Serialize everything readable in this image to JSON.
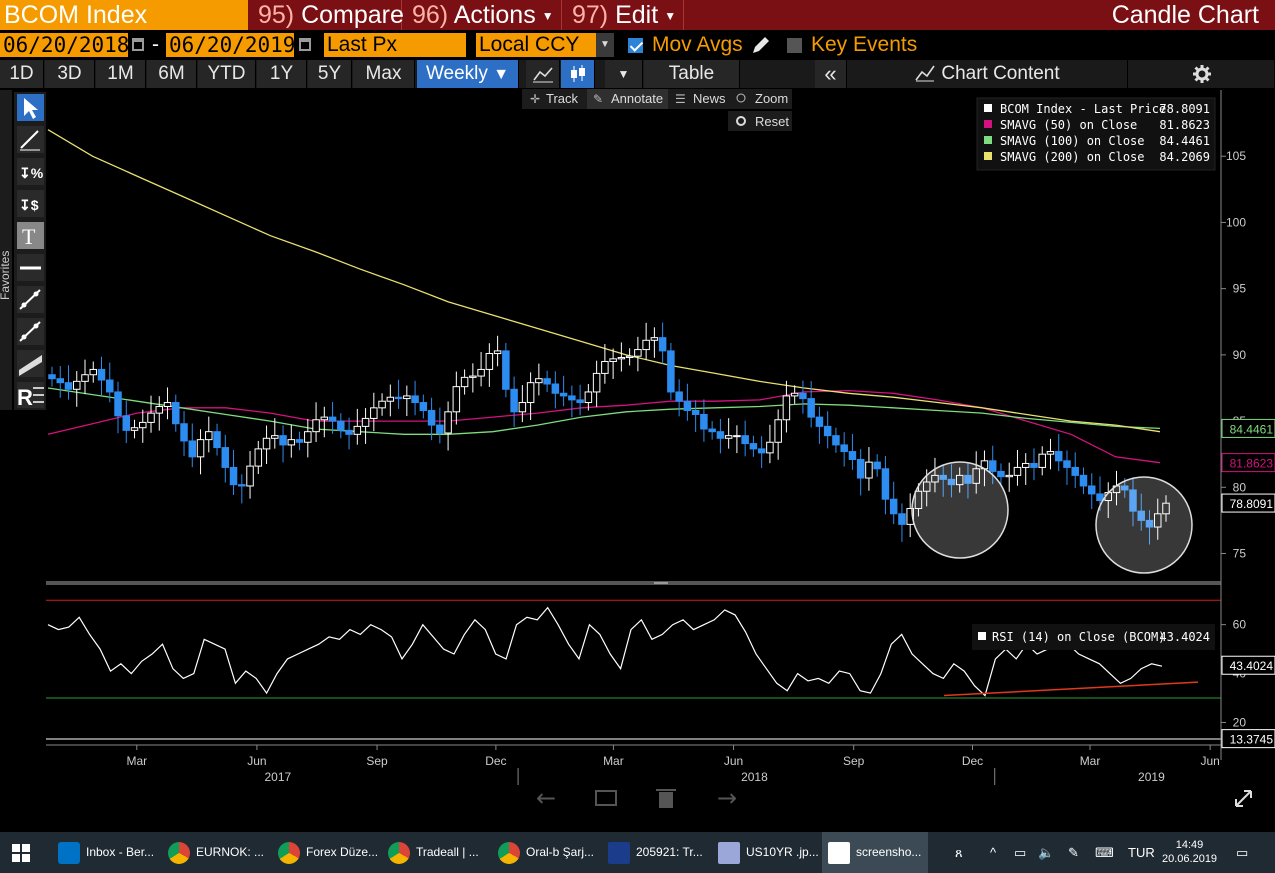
{
  "header": {
    "security": "BCOM Index",
    "menus": [
      {
        "num": "95)",
        "label": "Compare"
      },
      {
        "num": "96)",
        "label": "Actions"
      },
      {
        "num": "97)",
        "label": "Edit"
      }
    ],
    "chart_type": "Candle Chart"
  },
  "settings": {
    "start_date": "06/20/2018",
    "end_date": "06/20/2019",
    "separator": "-",
    "field": "Last Px",
    "currency": "Local CCY",
    "mov_avgs_label": "Mov Avgs",
    "mov_avgs_checked": true,
    "key_events_label": "Key Events",
    "key_events_checked": false
  },
  "toolbar": {
    "periods": [
      "1D",
      "3D",
      "1M",
      "6M",
      "YTD",
      "1Y",
      "5Y",
      "Max"
    ],
    "frequency": "Weekly",
    "table_label": "Table",
    "collapse_label": "«",
    "chart_content_label": "Chart Content"
  },
  "chart_tools": {
    "track": "Track",
    "annotate": "Annotate",
    "news": "News",
    "zoom": "Zoom",
    "reset": "Reset",
    "favorites": "Favorites"
  },
  "colors": {
    "candle_up": "#ffffff",
    "candle_down": "#2d8cf0",
    "sma50": "#d4127f",
    "sma100": "#7fdc7f",
    "sma200": "#e8e070",
    "rsi": "#ffffff",
    "rsi_upper": "#d31c1c",
    "rsi_lower": "#2ea02e",
    "trendline": "#e03a1a"
  },
  "legend": [
    {
      "label": "BCOM Index - Last Price",
      "value": "78.8091",
      "color": "#ffffff"
    },
    {
      "label": "SMAVG (50)  on Close",
      "value": "81.8623",
      "color": "#d4127f"
    },
    {
      "label": "SMAVG (100)  on Close",
      "value": "84.4461",
      "color": "#7fdc7f"
    },
    {
      "label": "SMAVG (200)  on Close",
      "value": "84.2069",
      "color": "#e8e070"
    }
  ],
  "rsi_legend": {
    "label": "RSI (14)  on Close (BCOM)",
    "value": "43.4024"
  },
  "price_tags": [
    {
      "value": "84.4461",
      "color": "#7fdc7f"
    },
    {
      "value": "81.8623",
      "color": "#d4127f"
    },
    {
      "value": "78.8091",
      "color": "#ffffff"
    }
  ],
  "rsi_tags": [
    {
      "value": "43.4024",
      "color": "#ffffff"
    },
    {
      "value": "13.3745",
      "color": "#ffffff"
    }
  ],
  "chart_data": [
    {
      "type": "candlestick",
      "frequency": "weekly",
      "y_axis_ticks": [
        75,
        80,
        85,
        90,
        95,
        100,
        105
      ],
      "ylim": [
        73,
        110
      ],
      "x_month_labels": [
        "Mar",
        "Jun",
        "Sep",
        "Dec",
        "Mar",
        "Jun",
        "Sep",
        "Dec",
        "Mar",
        "Jun"
      ],
      "x_year_labels": [
        "2017",
        "2018",
        "2019"
      ],
      "x_start": "2017-01-06",
      "x_end": "2019-06-21",
      "series": [
        {
          "name": "BCOM Index - Last Price",
          "close": [
            88.2,
            87.9,
            87.4,
            88.0,
            88.5,
            88.9,
            88.1,
            87.2,
            85.4,
            84.3,
            84.5,
            84.9,
            85.6,
            86.1,
            86.4,
            84.8,
            83.5,
            82.3,
            83.6,
            84.2,
            83.0,
            81.5,
            80.2,
            80.1,
            81.6,
            82.9,
            83.7,
            83.9,
            83.2,
            83.6,
            83.4,
            84.2,
            85.1,
            85.3,
            85.0,
            84.3,
            84.0,
            84.6,
            85.2,
            86.0,
            86.5,
            86.8,
            86.7,
            86.9,
            86.4,
            85.8,
            84.7,
            84.1,
            85.7,
            87.6,
            88.3,
            88.4,
            88.9,
            90.1,
            90.3,
            87.4,
            85.7,
            86.4,
            87.9,
            88.2,
            87.8,
            87.1,
            86.9,
            86.6,
            86.4,
            87.2,
            88.6,
            89.5,
            89.7,
            89.8,
            89.9,
            90.4,
            91.1,
            91.3,
            90.3,
            87.2,
            86.5,
            85.8,
            85.5,
            84.4,
            84.2,
            83.7,
            83.9,
            83.9,
            83.3,
            82.9,
            82.6,
            83.4,
            85.1,
            86.9,
            87.1,
            86.7,
            85.3,
            84.6,
            83.9,
            83.2,
            82.7,
            82.1,
            80.7,
            81.9,
            81.4,
            79.1,
            78.0,
            77.2,
            78.4,
            79.7,
            80.4,
            80.9,
            80.6,
            80.2,
            80.9,
            80.3,
            81.4,
            82.0,
            81.2,
            80.8,
            80.9,
            81.5,
            81.8,
            81.5,
            82.5,
            82.7,
            82.0,
            81.5,
            80.9,
            80.1,
            79.5,
            79.0,
            79.6,
            80.1,
            79.8,
            78.2,
            77.5,
            77.0,
            78.0,
            78.8
          ]
        },
        {
          "name": "SMAVG (50)  on Close",
          "values": [
            84.0,
            84.8,
            85.6,
            86.0,
            86.0,
            85.6,
            85.0,
            85.0,
            85.0,
            85.0,
            85.3,
            85.6,
            86.0,
            86.2,
            86.5,
            86.5,
            86.6,
            87.2,
            87.3,
            87.1,
            86.6,
            86.0,
            85.0,
            84.0,
            82.3,
            81.86
          ]
        },
        {
          "name": "SMAVG (100)  on Close",
          "values": [
            87.5,
            87.0,
            86.5,
            86.0,
            85.5,
            85.0,
            84.4,
            84.2,
            84.0,
            84.0,
            84.2,
            84.7,
            85.3,
            85.7,
            85.9,
            86.0,
            86.1,
            86.3,
            86.2,
            86.0,
            85.8,
            85.6,
            85.2,
            84.9,
            84.6,
            84.45
          ]
        },
        {
          "name": "SMAVG (200)  on Close",
          "values": [
            107.0,
            105.0,
            103.5,
            102.0,
            100.5,
            99.0,
            97.8,
            96.5,
            95.3,
            94.0,
            93.0,
            92.0,
            91.0,
            90.0,
            89.2,
            88.6,
            88.0,
            87.5,
            87.1,
            86.8,
            86.4,
            86.0,
            85.5,
            85.0,
            84.7,
            84.2
          ]
        }
      ]
    },
    {
      "type": "line",
      "name": "RSI (14)  on Close (BCOM)",
      "y_axis_ticks": [
        20,
        40,
        60
      ],
      "ylim": [
        12,
        75
      ],
      "upper_line": 70,
      "lower_line": 30,
      "series": [
        {
          "name": "RSI (14)  on Close (BCOM)",
          "values": [
            60,
            58,
            59,
            63,
            56,
            50,
            41,
            44,
            40,
            45,
            48,
            52,
            42,
            38,
            40,
            54,
            52,
            50,
            36,
            41,
            38,
            32,
            40,
            46,
            48,
            50,
            52,
            55,
            54,
            58,
            56,
            60,
            58,
            55,
            46,
            52,
            60,
            55,
            50,
            48,
            56,
            62,
            58,
            48,
            46,
            60,
            63,
            62,
            67,
            60,
            52,
            46,
            60,
            56,
            48,
            42,
            58,
            62,
            54,
            56,
            60,
            62,
            58,
            60,
            62,
            66,
            64,
            57,
            48,
            42,
            36,
            33,
            40,
            37,
            38,
            36,
            41,
            40,
            33,
            32,
            40,
            52,
            56,
            48,
            44,
            40,
            38,
            44,
            41,
            35,
            31,
            46,
            50,
            46,
            52,
            48,
            50,
            56,
            52,
            48,
            46,
            44,
            40,
            36,
            38,
            42,
            44,
            43
          ]
        }
      ]
    }
  ]
}
